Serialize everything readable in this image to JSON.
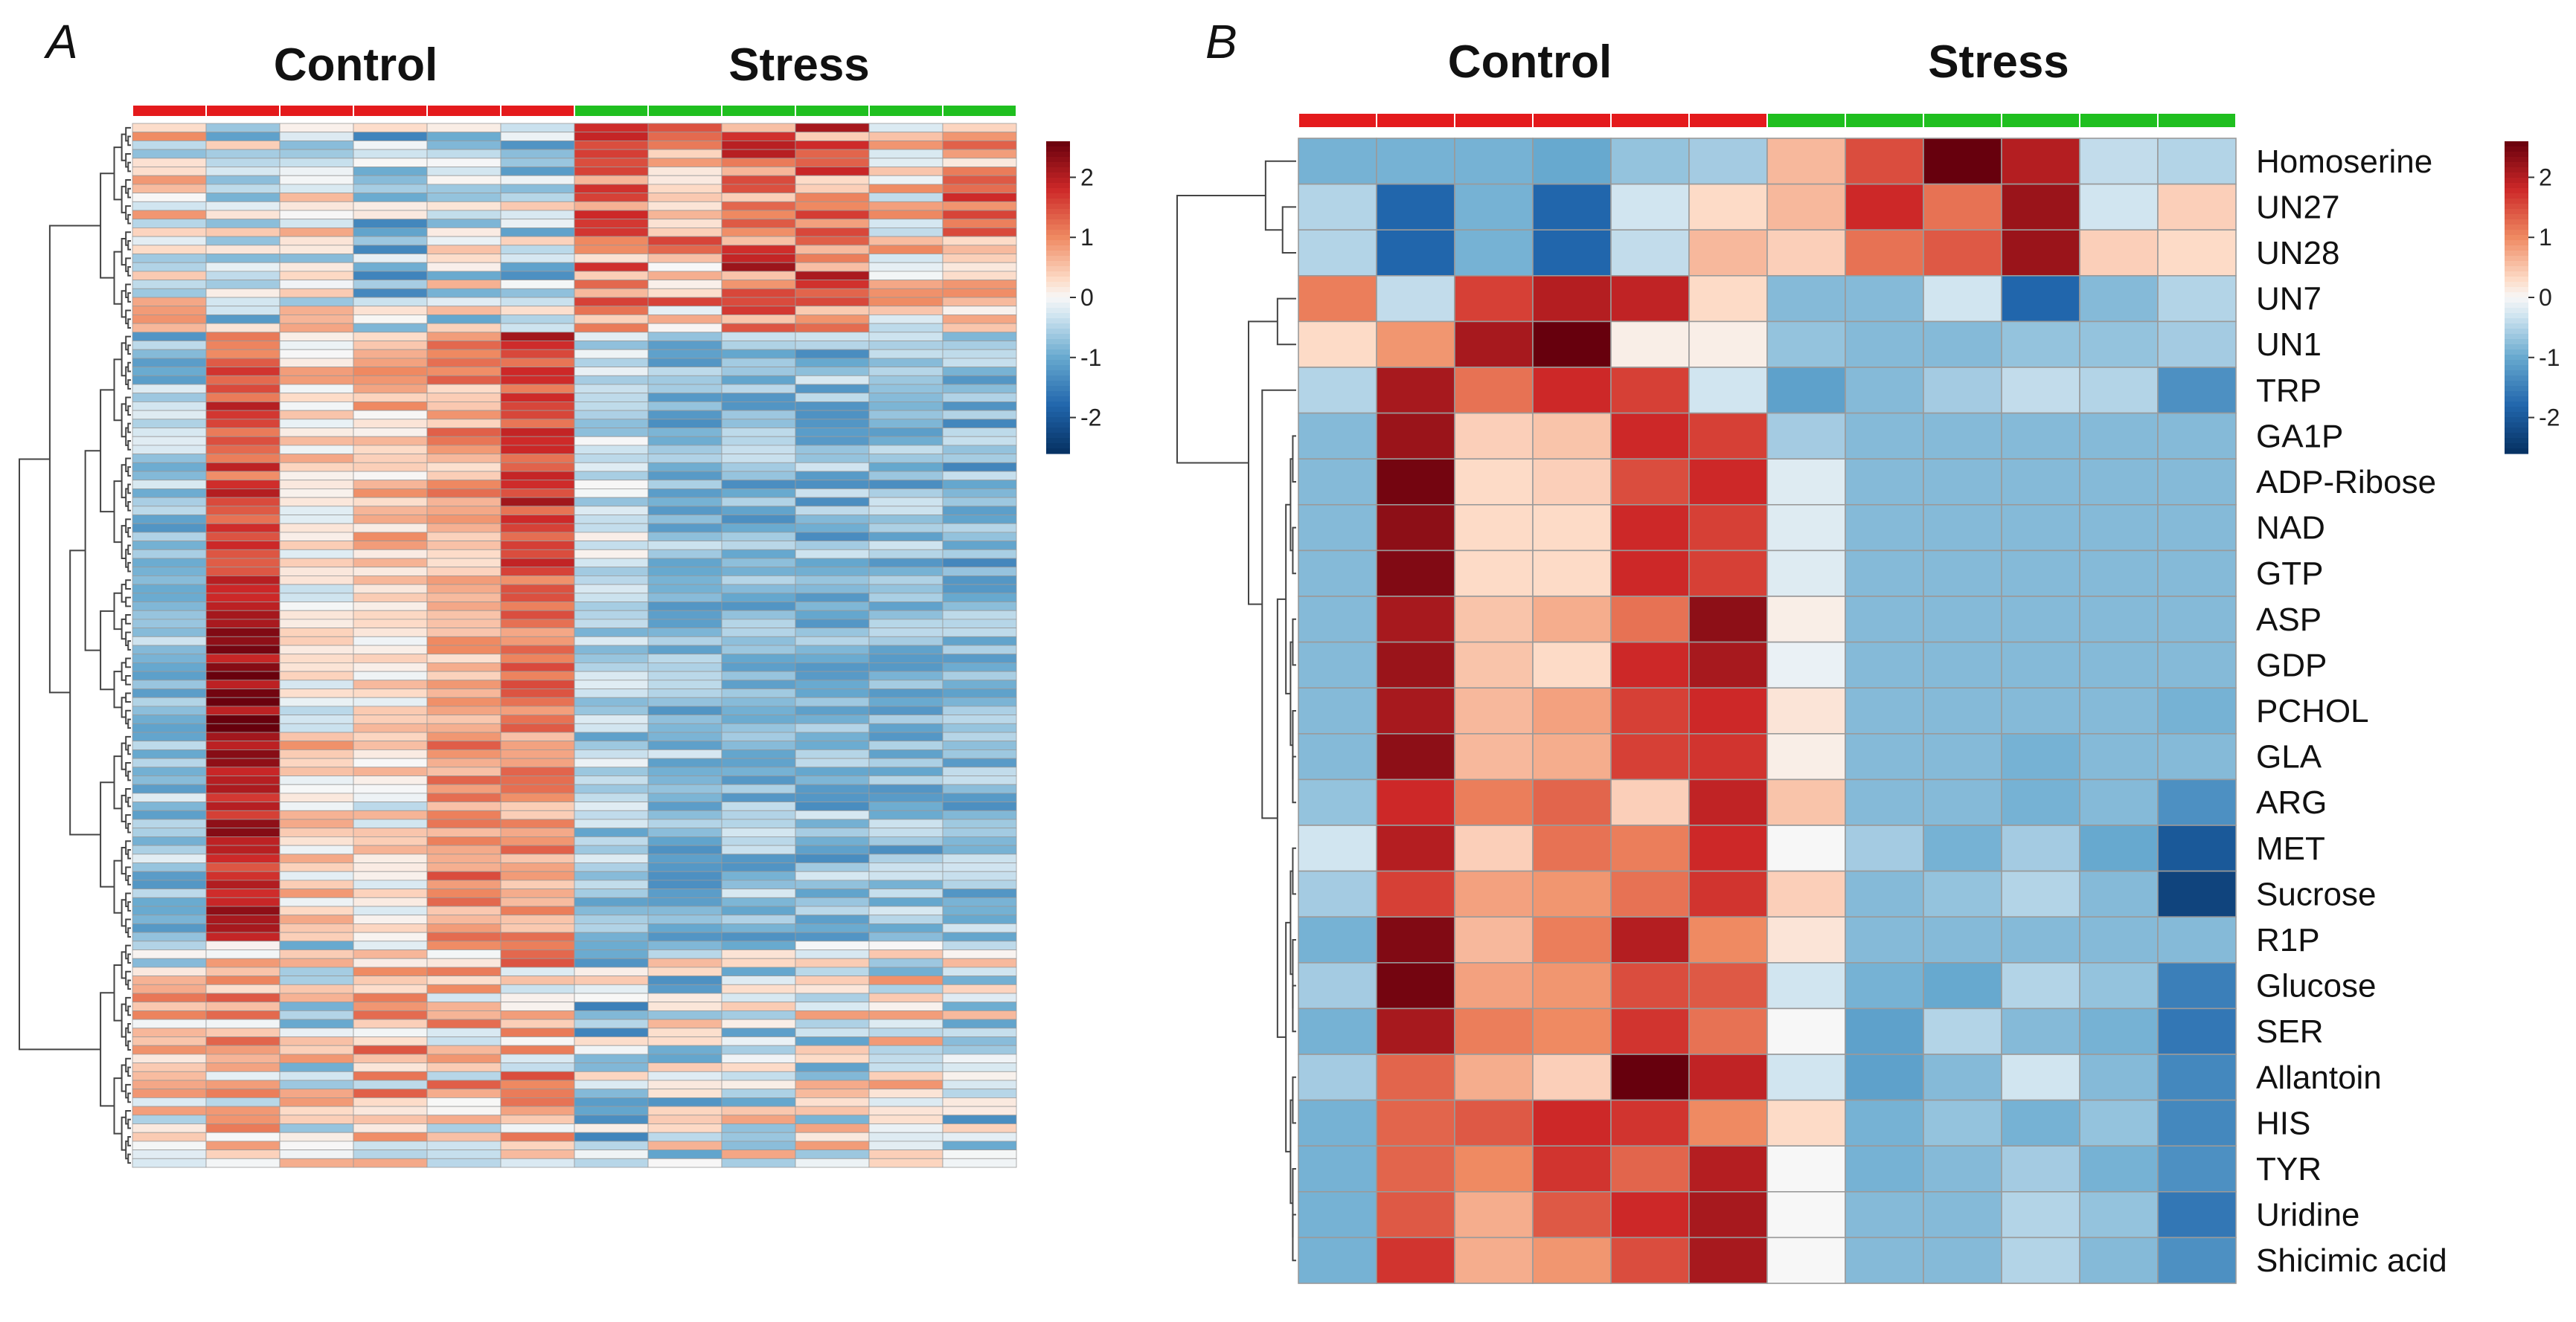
{
  "colors": {
    "control": "#e41a1c",
    "stress": "#1fbf1f",
    "grid": "#9a9a9a",
    "dendrogram": "#444444"
  },
  "chart_data": [
    {
      "type": "heatmap",
      "panel": "A",
      "title": "",
      "column_groups": [
        {
          "label": "Control",
          "color": "#e41a1c",
          "count": 6
        },
        {
          "label": "Stress",
          "color": "#1fbf1f",
          "count": 6
        }
      ],
      "n_columns": 12,
      "n_rows": 120,
      "color_scale": {
        "min": -2.6,
        "max": 2.6,
        "ticks": [
          2,
          1,
          0,
          -1,
          -2
        ],
        "tick_labels": [
          "2",
          "1",
          "0",
          "-1",
          "-2"
        ],
        "colormap": "blue-white-red"
      },
      "cluster_blocks": [
        {
          "rows": 24,
          "profile": [
            0.1,
            -0.3,
            0.0,
            -0.6,
            -0.2,
            -0.4,
            1.1,
            0.7,
            1.3,
            1.2,
            0.3,
            0.9
          ],
          "jitter": 0.9
        },
        {
          "rows": 28,
          "profile": [
            -0.7,
            1.5,
            0.3,
            0.5,
            0.8,
            1.6,
            -0.2,
            -0.8,
            -0.8,
            -0.8,
            -0.8,
            -0.9
          ],
          "jitter": 0.55
        },
        {
          "rows": 18,
          "profile": [
            -0.7,
            2.2,
            0.0,
            0.2,
            0.6,
            1.2,
            -0.5,
            -0.8,
            -0.8,
            -0.8,
            -0.8,
            -0.8
          ],
          "jitter": 0.45
        },
        {
          "rows": 24,
          "profile": [
            -0.7,
            1.9,
            0.4,
            0.1,
            1.0,
            0.8,
            -0.6,
            -0.8,
            -0.8,
            -0.8,
            -0.8,
            -0.8
          ],
          "jitter": 0.55
        },
        {
          "rows": 26,
          "profile": [
            0.2,
            0.4,
            0.0,
            0.5,
            0.4,
            0.6,
            -0.5,
            -0.3,
            -0.2,
            -0.1,
            0.0,
            -0.4
          ],
          "jitter": 1.0
        }
      ]
    },
    {
      "type": "heatmap",
      "panel": "B",
      "title": "",
      "column_groups": [
        {
          "label": "Control",
          "color": "#e41a1c",
          "count": 6
        },
        {
          "label": "Stress",
          "color": "#1fbf1f",
          "count": 6
        }
      ],
      "row_labels": [
        "Homoserine",
        "UN27",
        "UN28",
        "UN7",
        "UN1",
        "TRP",
        "GA1P",
        "ADP-Ribose",
        "NAD",
        "GTP",
        "ASP",
        "GDP",
        "PCHOL",
        "GLA",
        "ARG",
        "MET",
        "Sucrose",
        "R1P",
        "Glucose",
        "SER",
        "Allantoin",
        "HIS",
        "TYR",
        "Uridine",
        "Shicimic acid"
      ],
      "values": [
        [
          -0.9,
          -0.9,
          -0.9,
          -1.0,
          -0.7,
          -0.6,
          0.6,
          1.5,
          2.6,
          2.0,
          -0.4,
          -0.5
        ],
        [
          -0.5,
          -1.8,
          -0.9,
          -1.8,
          -0.3,
          0.3,
          0.6,
          1.8,
          1.2,
          2.2,
          -0.3,
          0.4
        ],
        [
          -0.5,
          -1.8,
          -0.9,
          -1.8,
          -0.4,
          0.6,
          0.4,
          1.2,
          1.4,
          2.2,
          0.4,
          0.3
        ],
        [
          1.1,
          -0.4,
          1.6,
          2.0,
          1.9,
          0.3,
          -0.8,
          -0.8,
          -0.3,
          -1.8,
          -0.8,
          -0.5
        ],
        [
          0.3,
          0.9,
          2.1,
          2.6,
          0.1,
          0.1,
          -0.7,
          -0.8,
          -0.8,
          -0.7,
          -0.7,
          -0.6
        ],
        [
          -0.5,
          2.1,
          1.2,
          1.8,
          1.6,
          -0.3,
          -1.1,
          -0.8,
          -0.6,
          -0.4,
          -0.5,
          -1.3
        ],
        [
          -0.8,
          2.2,
          0.4,
          0.5,
          1.8,
          1.6,
          -0.6,
          -0.8,
          -0.8,
          -0.8,
          -0.8,
          -0.8
        ],
        [
          -0.8,
          2.5,
          0.3,
          0.4,
          1.5,
          1.8,
          -0.2,
          -0.8,
          -0.8,
          -0.8,
          -0.8,
          -0.8
        ],
        [
          -0.8,
          2.3,
          0.3,
          0.3,
          1.8,
          1.6,
          -0.2,
          -0.8,
          -0.8,
          -0.8,
          -0.8,
          -0.8
        ],
        [
          -0.8,
          2.4,
          0.3,
          0.3,
          1.8,
          1.6,
          -0.2,
          -0.8,
          -0.8,
          -0.8,
          -0.8,
          -0.8
        ],
        [
          -0.8,
          2.1,
          0.5,
          0.7,
          1.2,
          2.3,
          0.1,
          -0.8,
          -0.8,
          -0.8,
          -0.8,
          -0.8
        ],
        [
          -0.8,
          2.2,
          0.5,
          0.3,
          1.8,
          2.1,
          -0.1,
          -0.8,
          -0.8,
          -0.8,
          -0.8,
          -0.8
        ],
        [
          -0.8,
          2.1,
          0.6,
          0.8,
          1.6,
          1.8,
          0.2,
          -0.8,
          -0.8,
          -0.8,
          -0.8,
          -0.9
        ],
        [
          -0.8,
          2.3,
          0.6,
          0.7,
          1.6,
          1.7,
          0.1,
          -0.8,
          -0.8,
          -0.9,
          -0.8,
          -0.8
        ],
        [
          -0.7,
          1.8,
          1.1,
          1.3,
          0.4,
          1.9,
          0.5,
          -0.8,
          -0.8,
          -0.9,
          -0.8,
          -1.3
        ],
        [
          -0.3,
          2.0,
          0.4,
          1.2,
          1.1,
          1.8,
          0.0,
          -0.6,
          -0.9,
          -0.6,
          -1.0,
          -2.0
        ],
        [
          -0.6,
          1.6,
          0.8,
          0.9,
          1.2,
          1.7,
          0.4,
          -0.8,
          -0.7,
          -0.5,
          -0.8,
          -2.3
        ],
        [
          -0.9,
          2.4,
          0.6,
          1.1,
          2.0,
          1.0,
          0.2,
          -0.8,
          -0.8,
          -0.8,
          -0.8,
          -0.8
        ],
        [
          -0.6,
          2.5,
          0.8,
          0.9,
          1.5,
          1.4,
          -0.3,
          -0.9,
          -1.0,
          -0.5,
          -0.7,
          -1.5
        ],
        [
          -0.9,
          2.1,
          1.1,
          1.0,
          1.7,
          1.2,
          0.0,
          -1.1,
          -0.5,
          -0.8,
          -0.9,
          -1.6
        ],
        [
          -0.6,
          1.3,
          0.7,
          0.4,
          2.6,
          1.9,
          -0.3,
          -1.1,
          -0.8,
          -0.3,
          -0.8,
          -1.4
        ],
        [
          -0.9,
          1.3,
          1.4,
          1.8,
          1.7,
          1.0,
          0.3,
          -0.9,
          -0.7,
          -0.9,
          -0.7,
          -1.4
        ],
        [
          -0.9,
          1.3,
          1.0,
          1.7,
          1.3,
          2.0,
          0.0,
          -0.9,
          -0.8,
          -0.6,
          -0.9,
          -1.3
        ],
        [
          -0.9,
          1.4,
          0.7,
          1.4,
          1.8,
          2.1,
          0.0,
          -0.8,
          -0.8,
          -0.5,
          -0.7,
          -1.6
        ],
        [
          -0.9,
          1.7,
          0.7,
          0.9,
          1.5,
          2.1,
          0.0,
          -0.8,
          -0.8,
          -0.5,
          -0.8,
          -1.3
        ]
      ],
      "color_scale": {
        "min": -2.6,
        "max": 2.6,
        "ticks": [
          2,
          1,
          0,
          -1,
          -2
        ],
        "tick_labels": [
          "2",
          "1",
          "0",
          "-1",
          "-2"
        ],
        "colormap": "blue-white-red"
      }
    }
  ],
  "panels": {
    "a": {
      "letter": "A",
      "control_label": "Control",
      "stress_label": "Stress"
    },
    "b": {
      "letter": "B",
      "control_label": "Control",
      "stress_label": "Stress"
    }
  }
}
